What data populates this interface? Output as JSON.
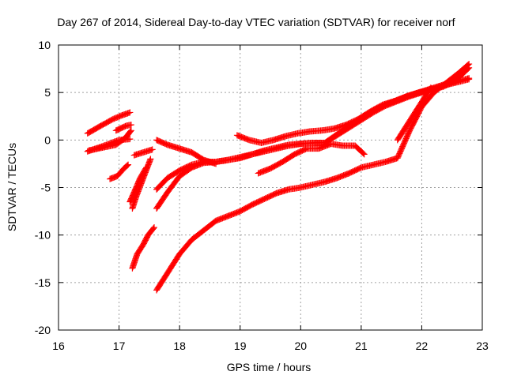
{
  "chart_data": {
    "type": "scatter",
    "title": "Day 267 of 2014, Sidereal Day-to-day VTEC variation (SDTVAR) for receiver norf",
    "xlabel": "GPS time / hours",
    "ylabel": "SDTVAR / TECUs",
    "xlim": [
      16,
      23
    ],
    "ylim": [
      -20,
      10
    ],
    "xticks": [
      "16",
      "17",
      "18",
      "19",
      "20",
      "21",
      "22",
      "23"
    ],
    "yticks": [
      "10",
      "5",
      "0",
      "-5",
      "-10",
      "-15",
      "-20"
    ],
    "grid": true,
    "marker": "plus",
    "color": "#ff0000",
    "series": [
      {
        "x": [
          16.48,
          16.7,
          16.9,
          17.05,
          17.18
        ],
        "y": [
          0.7,
          1.5,
          2.2,
          2.6,
          2.9
        ]
      },
      {
        "x": [
          16.48,
          16.75,
          17.0,
          17.18
        ],
        "y": [
          -1.2,
          -0.6,
          0.0,
          0.1
        ]
      },
      {
        "x": [
          16.5,
          16.65,
          16.8,
          16.95,
          17.1,
          17.2
        ],
        "y": [
          -1.1,
          -0.9,
          -0.7,
          -0.5,
          0.2,
          1.0
        ]
      },
      {
        "x": [
          16.95,
          17.05,
          17.12,
          17.2
        ],
        "y": [
          1.0,
          1.3,
          1.5,
          1.6
        ]
      },
      {
        "x": [
          16.85,
          16.97,
          17.08,
          17.15
        ],
        "y": [
          -4.1,
          -3.8,
          -3.0,
          -2.6
        ]
      },
      {
        "x": [
          17.22,
          17.28,
          17.4,
          17.52
        ],
        "y": [
          -7.2,
          -6.0,
          -4.0,
          -2.0
        ]
      },
      {
        "x": [
          17.18,
          17.25,
          17.35,
          17.45
        ],
        "y": [
          -6.5,
          -5.5,
          -4.0,
          -2.9
        ]
      },
      {
        "x": [
          17.25,
          17.4,
          17.55
        ],
        "y": [
          -1.6,
          -1.3,
          -1.0
        ]
      },
      {
        "x": [
          17.22,
          17.3,
          17.4,
          17.48,
          17.58
        ],
        "y": [
          -13.5,
          -12.0,
          -11.0,
          -10.0,
          -9.2
        ]
      },
      {
        "x": [
          17.62,
          17.8,
          18.0,
          18.2,
          18.4,
          18.6,
          18.8,
          19.0,
          19.2,
          19.4,
          19.6,
          19.8,
          20.0,
          20.2,
          20.4,
          20.6,
          20.8,
          21.0,
          21.2,
          21.4,
          21.6,
          21.8,
          22.0,
          22.2,
          22.4,
          22.6,
          22.78
        ],
        "y": [
          -15.8,
          -14.0,
          -12.0,
          -10.5,
          -9.5,
          -8.5,
          -8.0,
          -7.5,
          -6.8,
          -6.2,
          -5.6,
          -5.2,
          -5.0,
          -4.7,
          -4.4,
          -4.0,
          -3.5,
          -2.9,
          -2.6,
          -2.3,
          -1.9,
          1.0,
          3.5,
          5.0,
          6.0,
          7.0,
          8.0
        ]
      },
      {
        "x": [
          17.62,
          17.8,
          18.0,
          18.2,
          18.4,
          18.6,
          18.8,
          19.0,
          19.2,
          19.4,
          19.6,
          19.8,
          20.0,
          20.2,
          20.4,
          20.6,
          20.8,
          21.0,
          21.2,
          21.4,
          21.6,
          21.8,
          22.0,
          22.2,
          22.4,
          22.6,
          22.78
        ],
        "y": [
          -7.2,
          -5.5,
          -3.8,
          -2.9,
          -2.4,
          -2.3,
          -2.1,
          -1.8,
          -1.5,
          -1.2,
          -0.9,
          -0.6,
          -0.4,
          -0.3,
          -0.3,
          0.5,
          1.3,
          2.1,
          2.9,
          3.6,
          4.1,
          4.6,
          5.0,
          5.4,
          5.8,
          6.1,
          6.4
        ]
      },
      {
        "x": [
          17.62,
          17.8,
          18.0,
          18.2,
          18.4,
          18.6,
          18.8,
          19.0,
          19.2,
          19.4,
          19.6,
          19.8,
          20.0,
          20.2,
          20.4,
          20.6,
          20.8,
          21.0,
          21.2,
          21.4,
          21.6,
          21.8,
          22.0,
          22.2,
          22.4,
          22.6,
          22.78
        ],
        "y": [
          -5.2,
          -4.0,
          -3.2,
          -2.6,
          -2.3,
          -2.3,
          -2.1,
          -1.9,
          -1.5,
          -1.1,
          -0.8,
          -0.5,
          -0.4,
          -0.3,
          -0.3,
          0.6,
          1.5,
          2.3,
          3.1,
          3.7,
          4.2,
          4.7,
          5.1,
          5.5,
          5.9,
          6.2,
          6.5
        ]
      },
      {
        "x": [
          17.62,
          17.8,
          18.0,
          18.2,
          18.4,
          18.6
        ],
        "y": [
          0.0,
          -0.5,
          -0.9,
          -1.3,
          -2.1,
          -2.5
        ]
      },
      {
        "x": [
          18.95,
          19.15,
          19.35,
          19.55,
          19.75,
          19.95,
          20.15,
          20.35,
          20.55,
          20.75,
          20.95,
          21.15,
          21.35,
          21.55,
          21.75,
          21.95,
          22.15,
          22.35,
          22.55,
          22.78
        ],
        "y": [
          0.5,
          0.0,
          -0.3,
          0.0,
          0.4,
          0.7,
          0.9,
          1.0,
          1.2,
          1.6,
          2.2,
          3.0,
          3.7,
          4.1,
          4.6,
          5.0,
          5.3,
          5.6,
          6.2,
          7.6
        ]
      },
      {
        "x": [
          19.3,
          19.5,
          19.7,
          19.9,
          20.1,
          20.3,
          20.5,
          20.7,
          20.9,
          21.05
        ],
        "y": [
          -3.5,
          -3.0,
          -2.3,
          -1.5,
          -0.9,
          -0.9,
          -0.4,
          -0.6,
          -0.6,
          -1.5
        ]
      },
      {
        "x": [
          21.6,
          21.75,
          21.9,
          22.05,
          22.15
        ],
        "y": [
          0.0,
          1.5,
          3.0,
          4.5,
          5.5
        ]
      }
    ]
  }
}
